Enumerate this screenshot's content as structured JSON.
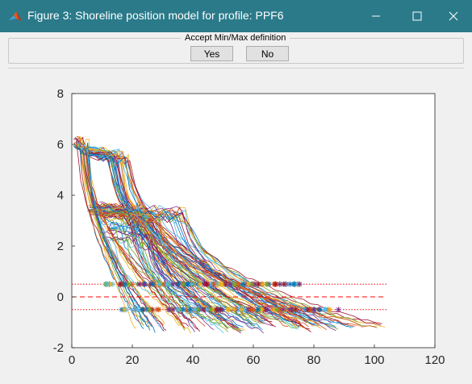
{
  "window": {
    "title": "Figure 3: Shoreline position model for profile: PPF6",
    "icon": "matlab-logo-icon"
  },
  "controls": {
    "minimize": "minimize-icon",
    "maximize": "maximize-icon",
    "close": "close-icon"
  },
  "panel": {
    "title": "Accept Min/Max definition",
    "yes_label": "Yes",
    "no_label": "No"
  },
  "chart_data": {
    "type": "line",
    "xlim": [
      0,
      120
    ],
    "ylim": [
      -2,
      8
    ],
    "x_ticks": [
      "0",
      "20",
      "40",
      "60",
      "80",
      "100",
      "120"
    ],
    "y_ticks": [
      "-2",
      "0",
      "2",
      "4",
      "6",
      "8"
    ],
    "reference_lines": [
      {
        "style": "dashed",
        "y": 0
      },
      {
        "style": "dotted",
        "y": 0.5
      },
      {
        "style": "dotted",
        "y": -0.5
      }
    ],
    "profile_count": 120,
    "x_range_of_profiles": [
      0,
      104
    ],
    "max_markers": {
      "y": 0.5,
      "x_range": [
        11,
        76
      ]
    },
    "min_markers": {
      "y": -0.5,
      "x_range": [
        16,
        92
      ]
    },
    "grid": false,
    "legend": "none"
  },
  "colors": {
    "titlebar": "#2a7a8a",
    "reference_line": "#ff0000",
    "series": [
      "#0072bd",
      "#d95319",
      "#edb120",
      "#7e2f8e",
      "#77ac30",
      "#4dbeee",
      "#a2142f"
    ]
  }
}
